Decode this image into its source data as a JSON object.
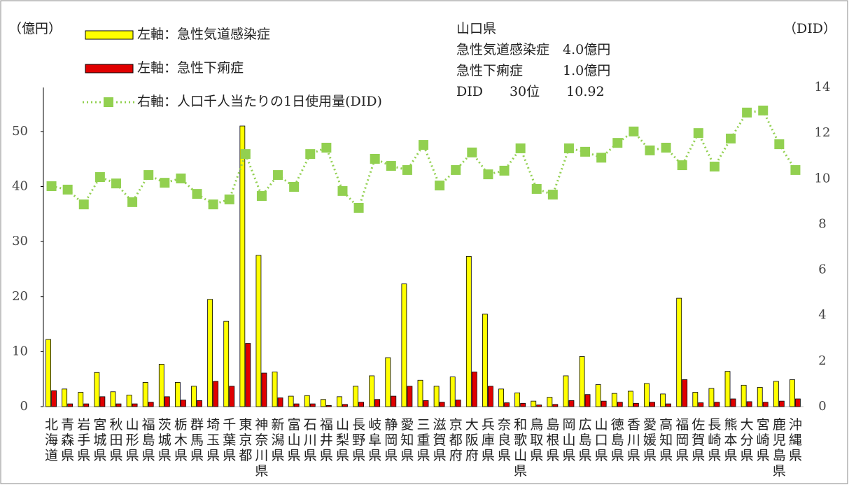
{
  "chart_data": {
    "type": "bar-line",
    "ylabel": "（億円）",
    "y2label": "（DID）",
    "annotation": [
      "山口県",
      "急性気道感染症　4.0億円",
      "急性下痢症　　　1.0億円",
      "DID　　30位　　10.92"
    ],
    "categories": [
      "北海道",
      "青森県",
      "岩手県",
      "宮城県",
      "秋田県",
      "山形県",
      "福島県",
      "茨城県",
      "栃木県",
      "群馬県",
      "埼玉県",
      "千葉県",
      "東京都",
      "神奈川県",
      "新潟県",
      "富山県",
      "石川県",
      "福井県",
      "山梨県",
      "長野県",
      "岐阜県",
      "静岡県",
      "愛知県",
      "三重県",
      "滋賀県",
      "京都府",
      "大阪府",
      "兵庫県",
      "奈良県",
      "和歌山県",
      "鳥取県",
      "島根県",
      "岡山県",
      "広島県",
      "山口県",
      "徳島県",
      "香川県",
      "愛媛県",
      "高知県",
      "福岡県",
      "佐賀県",
      "長崎県",
      "熊本県",
      "大分県",
      "宮崎県",
      "鹿児島県",
      "沖縄県"
    ],
    "series": [
      {
        "name": "左軸：急性気道感染症",
        "type": "bar",
        "color": "#ffff00",
        "axis": "y",
        "values": [
          12.2,
          3.2,
          2.6,
          6.2,
          2.7,
          2.1,
          4.4,
          7.7,
          4.4,
          3.7,
          19.5,
          15.5,
          51.0,
          27.5,
          6.3,
          1.9,
          2.0,
          1.3,
          1.8,
          3.7,
          5.6,
          8.9,
          22.3,
          4.8,
          3.7,
          5.4,
          27.3,
          16.8,
          3.2,
          2.5,
          1.0,
          1.7,
          5.6,
          9.1,
          4.0,
          2.4,
          2.8,
          4.2,
          2.3,
          19.7,
          2.6,
          3.3,
          6.4,
          3.9,
          3.5,
          4.6,
          4.9
        ]
      },
      {
        "name": "左軸：急性下痢症",
        "type": "bar",
        "color": "#e00000",
        "axis": "y",
        "values": [
          2.9,
          0.5,
          0.5,
          1.8,
          0.5,
          0.5,
          0.8,
          1.8,
          1.2,
          1.1,
          4.6,
          3.7,
          11.5,
          6.1,
          1.6,
          0.5,
          0.5,
          0.2,
          0.4,
          0.8,
          1.3,
          1.9,
          3.7,
          1.1,
          0.8,
          1.2,
          6.3,
          3.7,
          0.7,
          0.6,
          0.3,
          0.4,
          1.1,
          2.2,
          1.0,
          0.8,
          0.6,
          0.8,
          0.5,
          4.9,
          0.7,
          0.8,
          1.4,
          0.9,
          0.8,
          1.0,
          1.4
        ]
      },
      {
        "name": "右軸：人口千人当たりの1日使用量(DID)",
        "type": "line",
        "color": "#92d050",
        "axis": "y2",
        "values": [
          9.67,
          9.52,
          8.87,
          10.07,
          9.79,
          8.97,
          10.16,
          9.82,
          10.01,
          9.33,
          8.87,
          9.09,
          11.08,
          9.24,
          10.16,
          9.64,
          11.08,
          11.36,
          9.46,
          8.72,
          10.87,
          10.56,
          10.38,
          11.48,
          9.7,
          10.38,
          11.15,
          10.19,
          10.35,
          11.33,
          9.55,
          9.3,
          11.33,
          11.18,
          10.92,
          11.57,
          12.07,
          11.24,
          11.36,
          10.59,
          12.0,
          10.53,
          11.76,
          12.9,
          12.99,
          11.51,
          10.38
        ]
      }
    ],
    "ylim": [
      0,
      58
    ],
    "yticks": [
      0,
      10,
      20,
      30,
      40,
      50
    ],
    "y2lim": [
      0,
      14
    ],
    "y2ticks": [
      0,
      2,
      4,
      6,
      8,
      10,
      12,
      14
    ]
  }
}
